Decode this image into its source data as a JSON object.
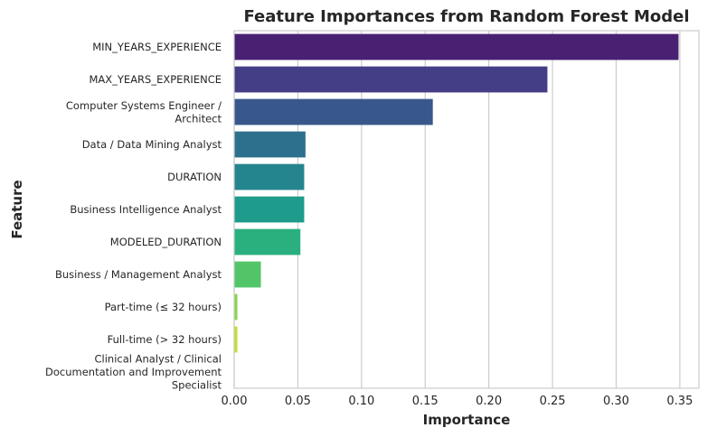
{
  "chart_data": {
    "type": "bar",
    "orientation": "horizontal",
    "title": "Feature Importances from Random Forest Model",
    "xlabel": "Importance",
    "ylabel": "Feature",
    "xlim": [
      0,
      0.365
    ],
    "xticks": [
      0.0,
      0.05,
      0.1,
      0.15,
      0.2,
      0.25,
      0.3,
      0.35
    ],
    "xtick_labels": [
      "0.00",
      "0.05",
      "0.10",
      "0.15",
      "0.20",
      "0.25",
      "0.30",
      "0.35"
    ],
    "grid": "vertical",
    "palette": "viridis",
    "categories": [
      [
        "MIN_YEARS_EXPERIENCE"
      ],
      [
        "MAX_YEARS_EXPERIENCE"
      ],
      [
        "Computer Systems Engineer /",
        "Architect"
      ],
      [
        "Data / Data Mining Analyst"
      ],
      [
        "DURATION"
      ],
      [
        "Business Intelligence Analyst"
      ],
      [
        "MODELED_DURATION"
      ],
      [
        "Business / Management Analyst"
      ],
      [
        "Part-time (≤ 32 hours)"
      ],
      [
        "Full-time (> 32 hours)"
      ],
      [
        "Clinical Analyst / Clinical",
        "Documentation and Improvement",
        "Specialist"
      ]
    ],
    "values": [
      0.349,
      0.246,
      0.156,
      0.056,
      0.055,
      0.055,
      0.052,
      0.021,
      0.0025,
      0.0025,
      0.0
    ],
    "colors": [
      "#482173",
      "#433e85",
      "#38588c",
      "#2d708e",
      "#25858e",
      "#1e9b8a",
      "#2ab07f",
      "#52c569",
      "#86d549",
      "#c2df23",
      "#fde725"
    ]
  }
}
